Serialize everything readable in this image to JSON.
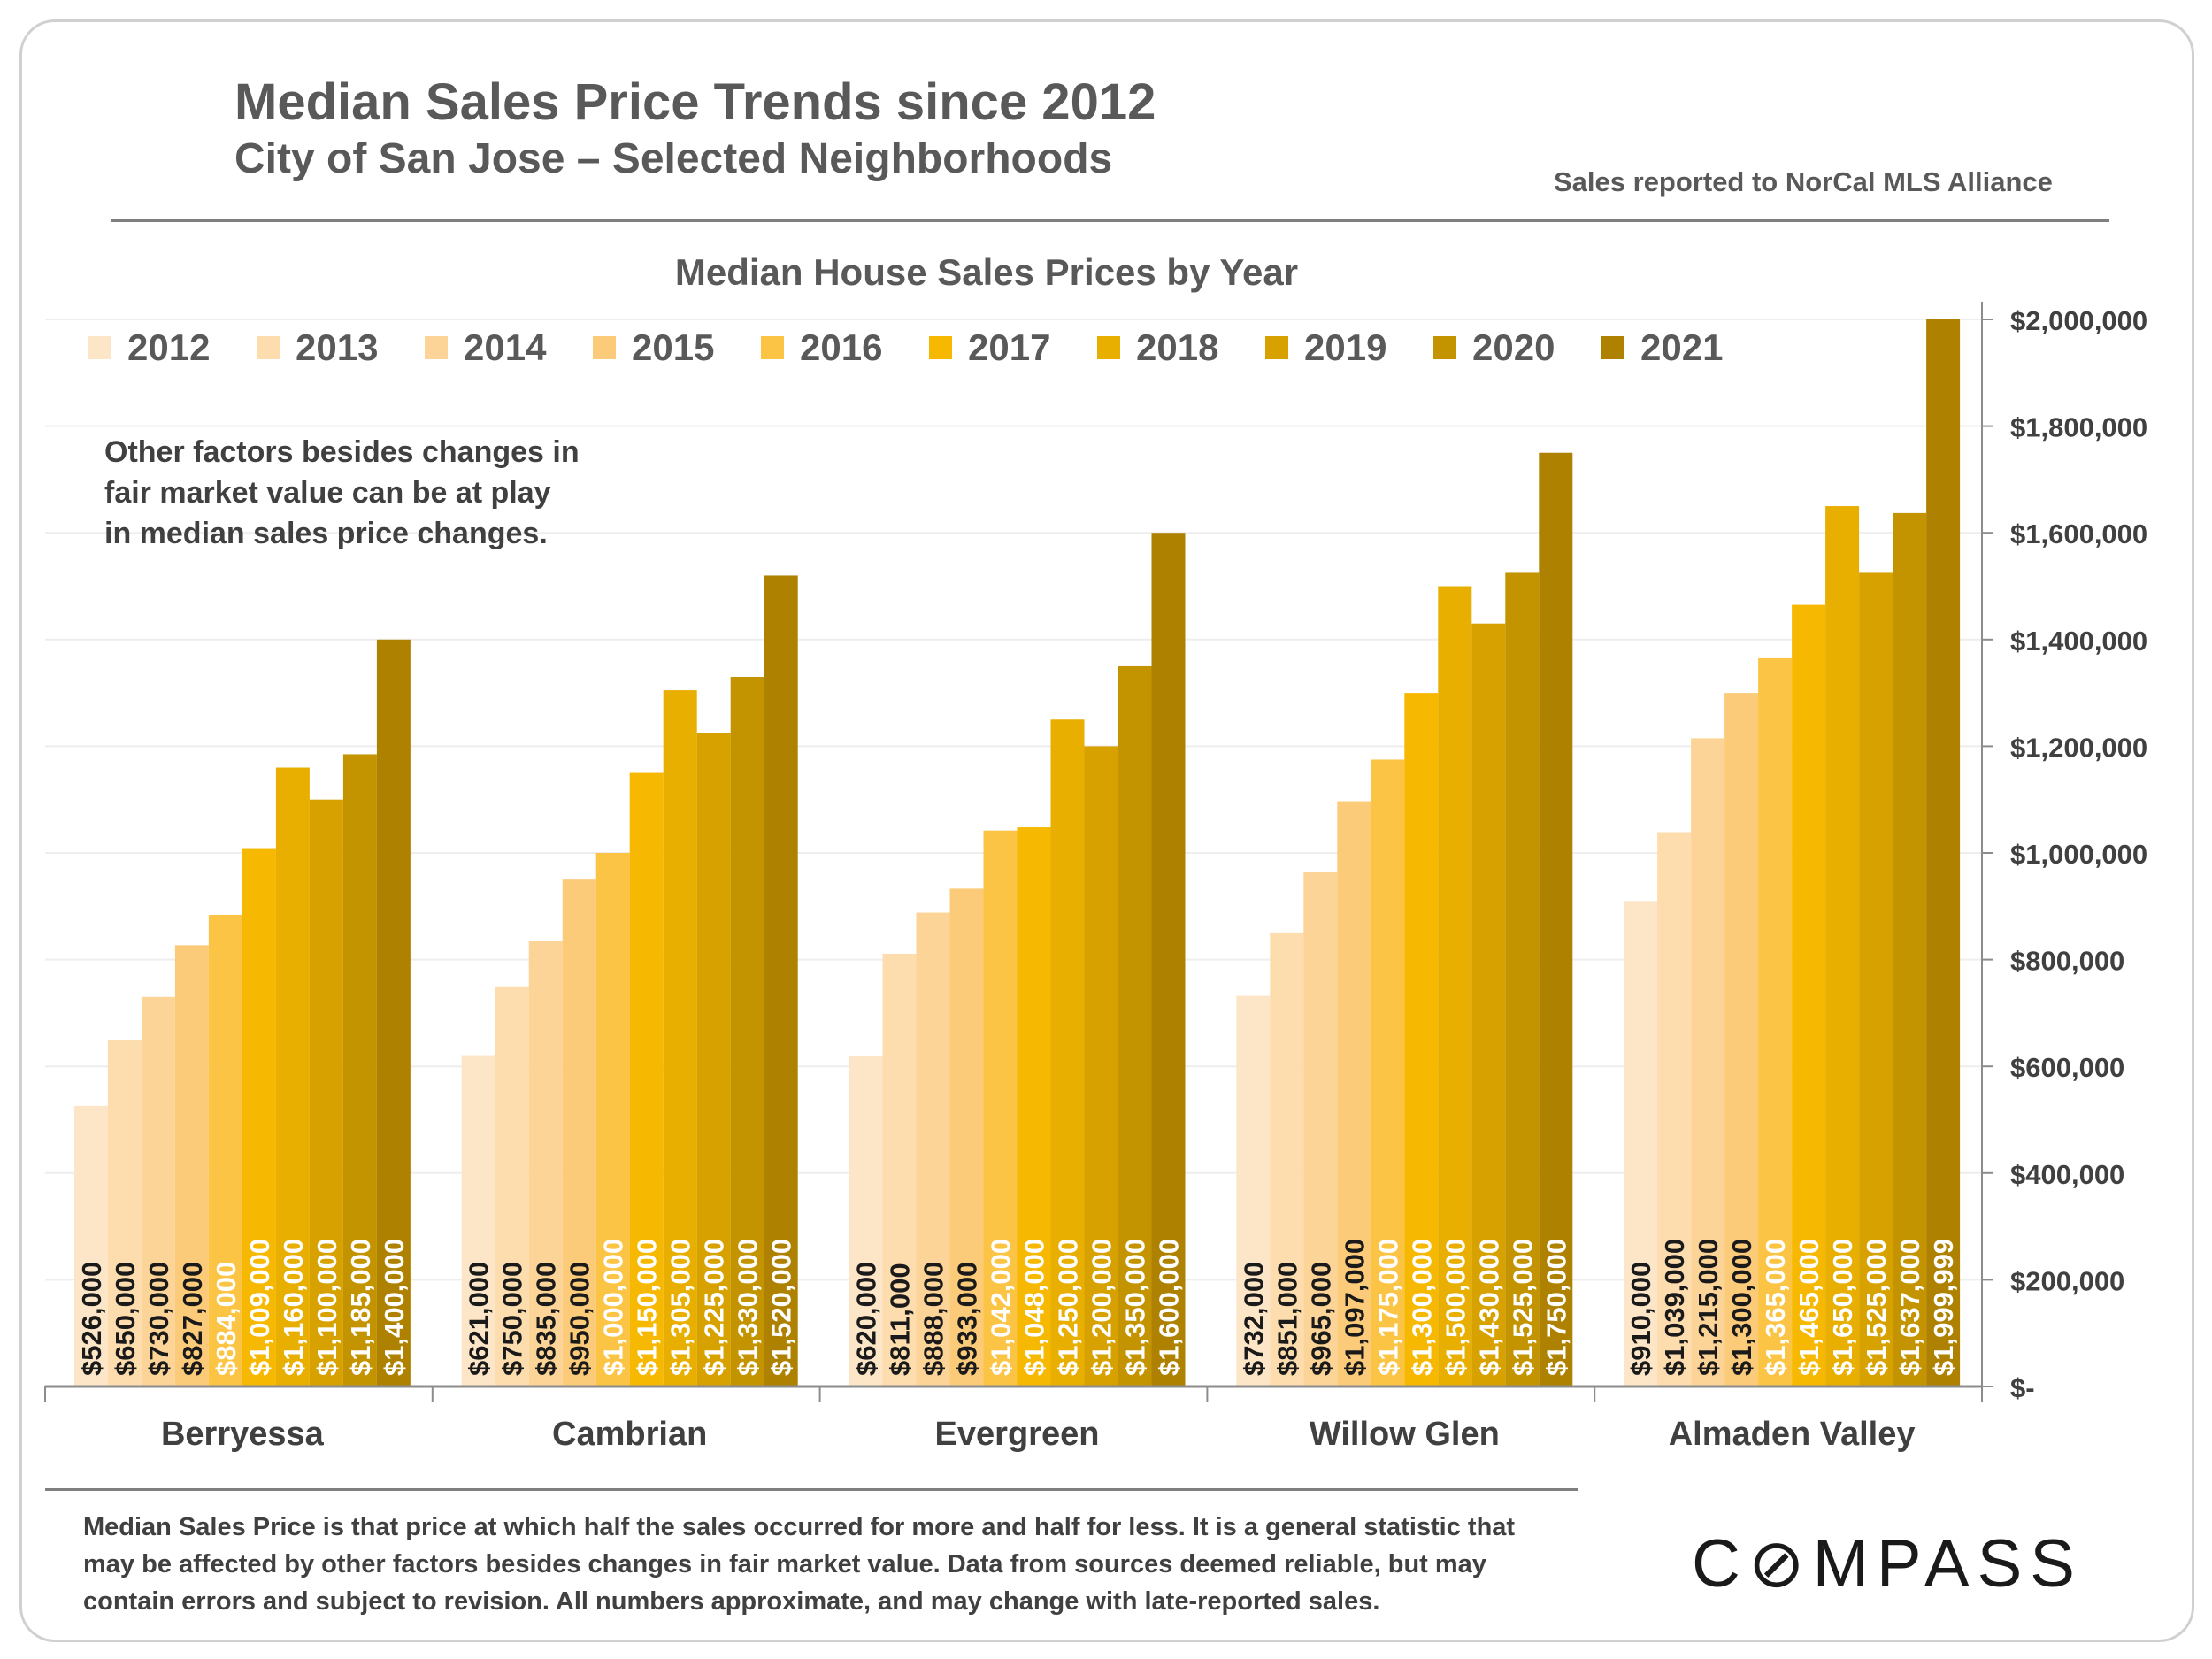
{
  "header": {
    "title": "Median Sales Price Trends since 2012",
    "subtitle": "City of San Jose – Selected Neighborhoods",
    "source": "Sales reported to NorCal MLS Alliance"
  },
  "note": "Other factors besides changes in fair market value can be at play in median sales price changes.",
  "footer": "Median Sales Price is that price at which half the sales occurred for more and half for less. It is a general statistic that may be affected by other factors besides changes in fair market value. Data from sources deemed reliable, but may contain errors and subject to revision.  All numbers approximate, and may change with late-reported sales.",
  "logo": "COMPASS",
  "chart_data": {
    "type": "bar",
    "title": "Median House Sales Prices by Year",
    "categories": [
      "Berryessa",
      "Cambrian",
      "Evergreen",
      "Willow Glen",
      "Almaden Valley"
    ],
    "ylim": [
      0,
      2000000
    ],
    "yticks": [
      0,
      200000,
      400000,
      600000,
      800000,
      1000000,
      1200000,
      1400000,
      1600000,
      1800000,
      2000000
    ],
    "ytick_labels": [
      "$-",
      "$200,000",
      "$400,000",
      "$600,000",
      "$800,000",
      "$1,000,000",
      "$1,200,000",
      "$1,400,000",
      "$1,600,000",
      "$1,800,000",
      "$2,000,000"
    ],
    "y_axis_side": "right",
    "grid": true,
    "legend_placement": "top",
    "series": [
      {
        "name": "2012",
        "color": "#FDE6C7",
        "values": [
          526000,
          621000,
          620000,
          732000,
          910000
        ]
      },
      {
        "name": "2013",
        "color": "#FDDCAE",
        "values": [
          650000,
          750000,
          811000,
          851000,
          1039000
        ]
      },
      {
        "name": "2014",
        "color": "#FDD497",
        "values": [
          730000,
          835000,
          888000,
          965000,
          1215000
        ]
      },
      {
        "name": "2015",
        "color": "#FCCB7A",
        "values": [
          827000,
          950000,
          933000,
          1097000,
          1300000
        ]
      },
      {
        "name": "2016",
        "color": "#FCC444",
        "values": [
          884000,
          1000000,
          1042000,
          1175000,
          1365000
        ]
      },
      {
        "name": "2017",
        "color": "#F6B800",
        "values": [
          1009000,
          1150000,
          1048000,
          1300000,
          1465000
        ]
      },
      {
        "name": "2018",
        "color": "#E8AE00",
        "values": [
          1160000,
          1305000,
          1250000,
          1500000,
          1650000
        ]
      },
      {
        "name": "2019",
        "color": "#D7A200",
        "values": [
          1100000,
          1225000,
          1200000,
          1430000,
          1525000
        ]
      },
      {
        "name": "2020",
        "color": "#C39400",
        "values": [
          1185000,
          1330000,
          1350000,
          1525000,
          1637000
        ]
      },
      {
        "name": "2021",
        "color": "#AE8200",
        "values": [
          1400000,
          1520000,
          1600000,
          1750000,
          1999999
        ]
      }
    ],
    "label_colors": {
      "dark": "#1a1a1a",
      "light": "#ffffff"
    }
  }
}
